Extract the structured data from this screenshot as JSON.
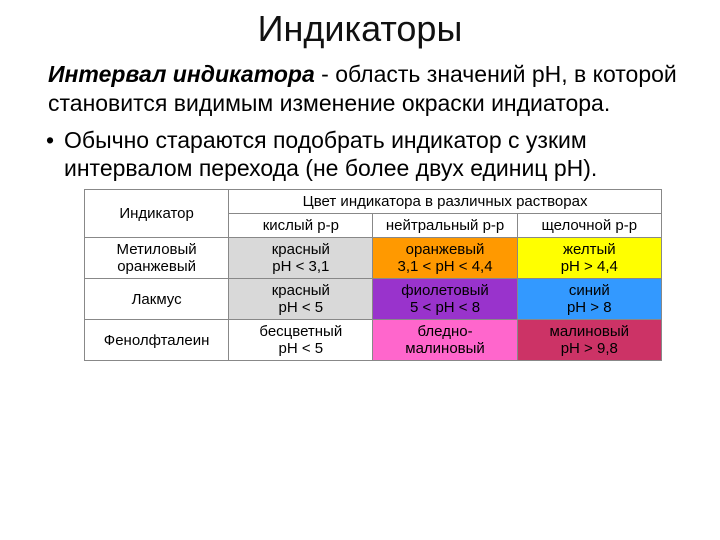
{
  "title": "Индикаторы",
  "definition": {
    "term": "Интервал индикатора",
    "sep": " - ",
    "text": "область значений pH, в которой становится видимым изменение окраски индиатора."
  },
  "bullet": "Обычно стараются подобрать индикатор с узким интервалом перехода (не более двух единиц pH).",
  "table": {
    "header_indicator": "Индикатор",
    "header_group": "Цвет индикатора в различных растворах",
    "col_acid": "кислый р-р",
    "col_neutral": "нейтральный р-р",
    "col_alk": "щелочной р-р",
    "col_widths": {
      "indicator": "25%",
      "acid": "25%",
      "neutral": "25%",
      "alk": "25%"
    },
    "rows": [
      {
        "name": "Метиловый оранжевый",
        "acid": {
          "line1": "красный",
          "line2": "pH < 3,1",
          "bg": "#d9d9d9",
          "fg": "#000000"
        },
        "neutral": {
          "line1": "оранжевый",
          "line2": "3,1 < pH < 4,4",
          "bg": "#ff9900",
          "fg": "#000000"
        },
        "alk": {
          "line1": "желтый",
          "line2": "pH > 4,4",
          "bg": "#ffff00",
          "fg": "#000000"
        }
      },
      {
        "name": "Лакмус",
        "acid": {
          "line1": "красный",
          "line2": "pH < 5",
          "bg": "#d9d9d9",
          "fg": "#000000"
        },
        "neutral": {
          "line1": "фиолетовый",
          "line2": "5 < pH < 8",
          "bg": "#9933cc",
          "fg": "#000000"
        },
        "alk": {
          "line1": "синий",
          "line2": "pH > 8",
          "bg": "#3399ff",
          "fg": "#000000"
        }
      },
      {
        "name": "Фенолфталеин",
        "acid": {
          "line1": "бесцветный",
          "line2": "pH < 5",
          "bg": "#ffffff",
          "fg": "#000000"
        },
        "neutral": {
          "line1": "бледно-",
          "line2": "малиновый",
          "bg": "#ff66cc",
          "fg": "#000000"
        },
        "alk": {
          "line1": "малиновый",
          "line2": "pH > 9,8",
          "bg": "#cc3366",
          "fg": "#000000"
        }
      }
    ]
  }
}
